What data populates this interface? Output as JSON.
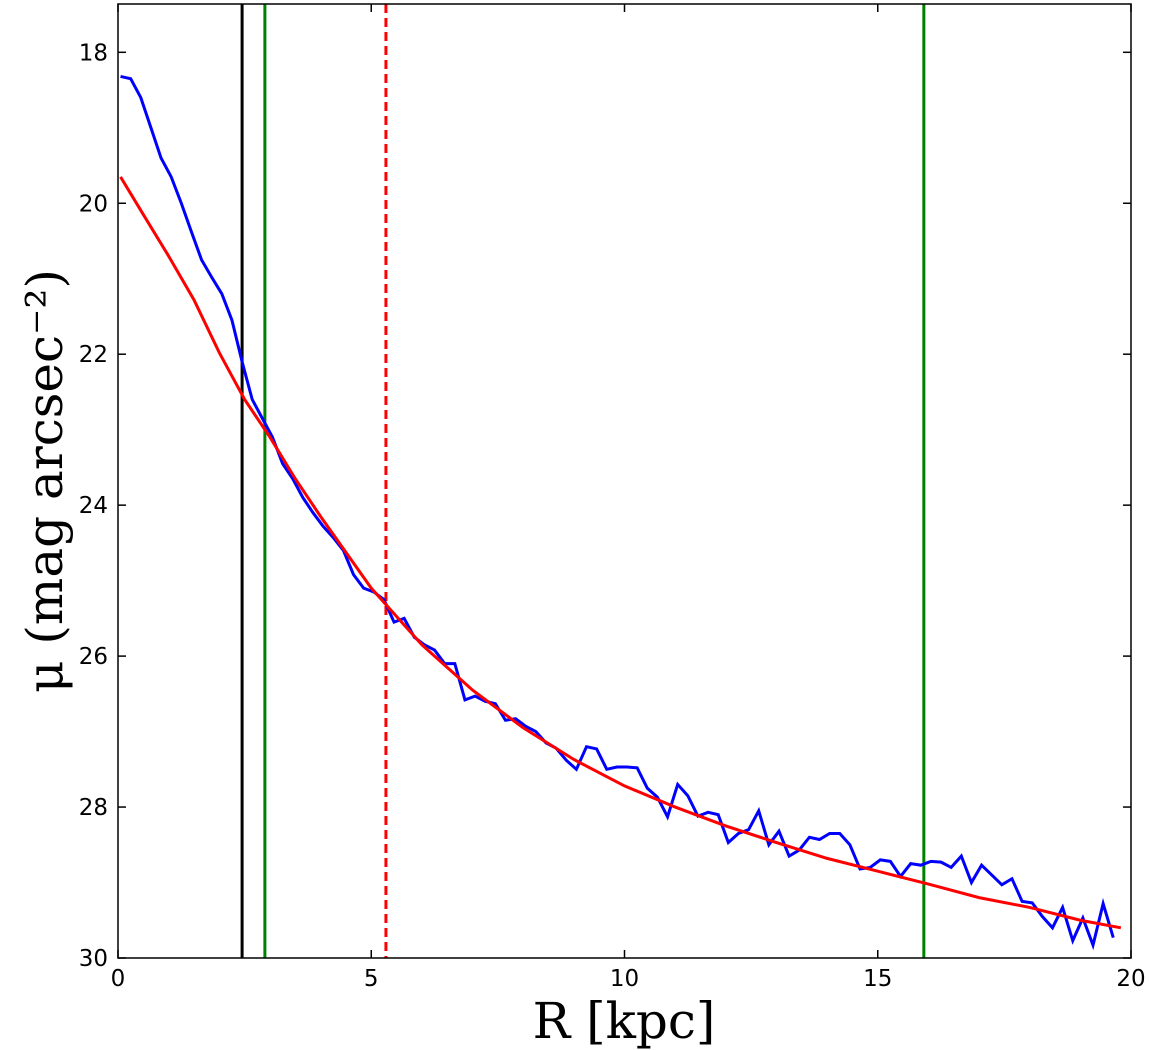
{
  "chart_data": {
    "type": "line",
    "xlabel": "R [kpc]",
    "ylabel": "μ (mag arcsec⁻²)",
    "xlim": [
      0,
      20
    ],
    "ylim": [
      30,
      17.36
    ],
    "xticks": [
      0,
      5,
      10,
      15,
      20
    ],
    "yticks": [
      18,
      20,
      22,
      24,
      26,
      28,
      30
    ],
    "series": [
      {
        "color": "#0000ff",
        "x": [
          0.05,
          0.25,
          0.45,
          0.65,
          0.85,
          1.05,
          1.25,
          1.45,
          1.65,
          1.85,
          2.05,
          2.25,
          2.45,
          2.65,
          2.85,
          3.05,
          3.25,
          3.45,
          3.65,
          3.85,
          4.05,
          4.25,
          4.45,
          4.65,
          4.85,
          5.05,
          5.25,
          5.45,
          5.65,
          5.85,
          6.05,
          6.25,
          6.45,
          6.65,
          6.85,
          7.05,
          7.25,
          7.45,
          7.65,
          7.85,
          8.05,
          8.25,
          8.45,
          8.65,
          8.85,
          9.05,
          9.25,
          9.45,
          9.65,
          9.85,
          10.05,
          10.25,
          10.45,
          10.65,
          10.85,
          11.05,
          11.25,
          11.45,
          11.65,
          11.85,
          12.05,
          12.25,
          12.45,
          12.65,
          12.85,
          13.05,
          13.25,
          13.45,
          13.65,
          13.85,
          14.05,
          14.25,
          14.45,
          14.65,
          14.85,
          15.05,
          15.25,
          15.45,
          15.65,
          15.85,
          16.05,
          16.25,
          16.45,
          16.65,
          16.85,
          17.05,
          17.25,
          17.45,
          17.65,
          17.85,
          18.05,
          18.25,
          18.45,
          18.65,
          18.85,
          19.05,
          19.25,
          19.45,
          19.65
        ],
        "values": [
          18.32,
          18.35,
          18.6,
          19.0,
          19.4,
          19.65,
          20.0,
          20.38,
          20.75,
          20.98,
          21.2,
          21.55,
          22.1,
          22.6,
          22.85,
          23.1,
          23.45,
          23.65,
          23.9,
          24.1,
          24.28,
          24.43,
          24.6,
          24.92,
          25.1,
          25.15,
          25.25,
          25.55,
          25.5,
          25.75,
          25.85,
          25.92,
          26.1,
          26.1,
          26.58,
          26.53,
          26.6,
          26.63,
          26.85,
          26.83,
          26.93,
          27.0,
          27.15,
          27.22,
          27.38,
          27.5,
          27.2,
          27.23,
          27.5,
          27.47,
          27.47,
          27.48,
          27.75,
          27.87,
          28.13,
          27.7,
          27.85,
          28.12,
          28.07,
          28.1,
          28.47,
          28.35,
          28.3,
          28.05,
          28.5,
          28.32,
          28.65,
          28.57,
          28.4,
          28.43,
          28.35,
          28.35,
          28.5,
          28.82,
          28.8,
          28.7,
          28.72,
          28.92,
          28.75,
          28.77,
          28.72,
          28.73,
          28.8,
          28.65,
          29.0,
          28.77,
          28.9,
          29.03,
          28.95,
          29.25,
          29.27,
          29.45,
          29.6,
          29.33,
          29.77,
          29.47,
          29.83,
          29.28,
          29.73
        ]
      },
      {
        "color": "#ff0000",
        "x": [
          0.05,
          0.5,
          1,
          1.5,
          2,
          2.5,
          3,
          3.5,
          4,
          5,
          6,
          7,
          8,
          9,
          10,
          11,
          12,
          13,
          14,
          15,
          16,
          17,
          18,
          19,
          19.8
        ],
        "values": [
          19.65,
          20.15,
          20.7,
          21.28,
          21.98,
          22.6,
          23.1,
          23.65,
          24.15,
          25.1,
          25.85,
          26.45,
          26.95,
          27.37,
          27.72,
          28.0,
          28.25,
          28.47,
          28.68,
          28.85,
          29.02,
          29.2,
          29.33,
          29.5,
          29.6
        ]
      }
    ],
    "vlines": [
      {
        "x": 2.45,
        "color": "#000000",
        "style": "solid"
      },
      {
        "x": 2.9,
        "color": "#008000",
        "style": "solid"
      },
      {
        "x": 5.29,
        "color": "#ff0000",
        "style": "dashed"
      },
      {
        "x": 15.91,
        "color": "#008000",
        "style": "solid"
      }
    ]
  }
}
